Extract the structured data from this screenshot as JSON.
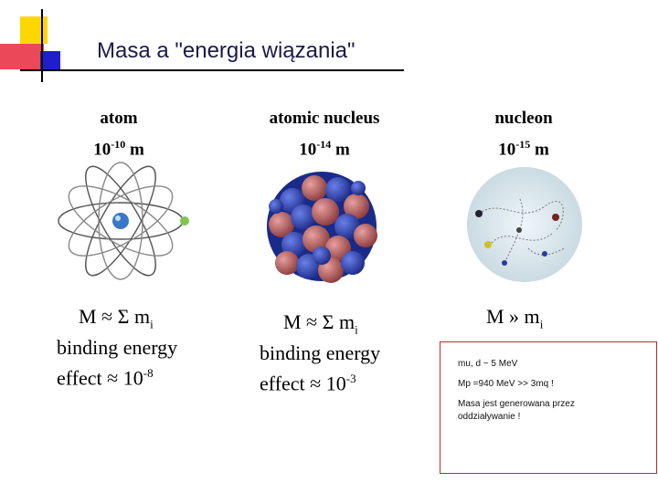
{
  "slide": {
    "title": "Masa a \"energia wiązania\""
  },
  "columns": [
    {
      "name": "atom",
      "size_base": "10",
      "size_exp": "-10",
      "size_unit": "m"
    },
    {
      "name": "atomic nucleus",
      "size_base": "10",
      "size_exp": "-14",
      "size_unit": "m"
    },
    {
      "name": "nucleon",
      "size_base": "10",
      "size_exp": "-15",
      "size_unit": "m"
    }
  ],
  "formulas": {
    "atom": {
      "mass": "M ≈ Σ m",
      "mass_sub": "i",
      "label": "binding energy",
      "effect": "effect ≈ 10",
      "effect_exp": "-8"
    },
    "nucleus": {
      "mass": "M ≈ Σ m",
      "mass_sub": "i",
      "label": "binding energy",
      "effect": "effect ≈ 10",
      "effect_exp": "-3"
    },
    "nucleon": {
      "mass": "M » m",
      "mass_sub": "i"
    }
  },
  "note": {
    "line1": "mu, d  ~ 5 MeV",
    "line2": "Mp =940 MeV >> 3mq  !",
    "line3": "Masa jest generowana przez",
    "line4": "oddziaływanie !"
  },
  "colors": {
    "deco_yellow": "#ffd700",
    "deco_red": "#e8283c",
    "deco_blue": "#1e1ecc",
    "note_border": "#c62828",
    "proton": "#b85a5a",
    "neutron": "#2a3aa8"
  }
}
